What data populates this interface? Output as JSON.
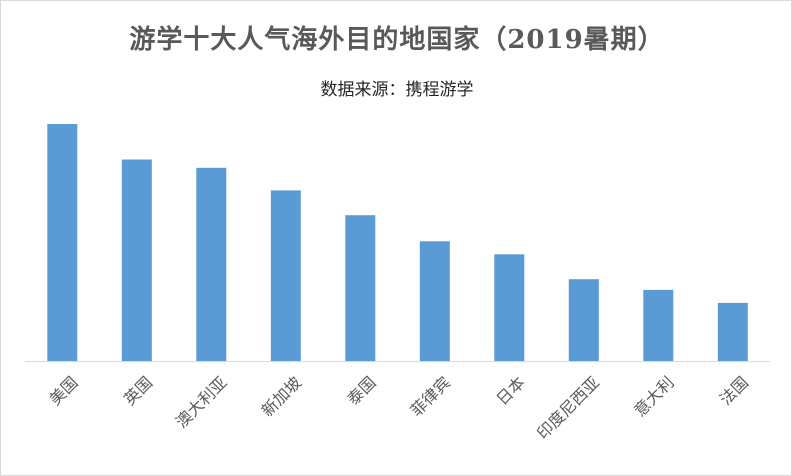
{
  "chart_data": {
    "type": "bar",
    "title": "游学十大人气海外目的地国家（2019暑期）",
    "subtitle": "数据来源：携程游学",
    "categories": [
      "美国",
      "英国",
      "澳大利亚",
      "新加坡",
      "泰国",
      "菲律宾",
      "日本",
      "印度尼西亚",
      "意大利",
      "法国"
    ],
    "values": [
      100,
      85,
      81.5,
      72,
      61.5,
      50.5,
      45,
      34.5,
      30,
      24.5
    ],
    "xlabel": "",
    "ylabel": "",
    "ylim": [
      0,
      100
    ],
    "grid": false,
    "legend": "none",
    "bar_color": "#5b9bd5",
    "axis_color": "#d9d9d9"
  }
}
